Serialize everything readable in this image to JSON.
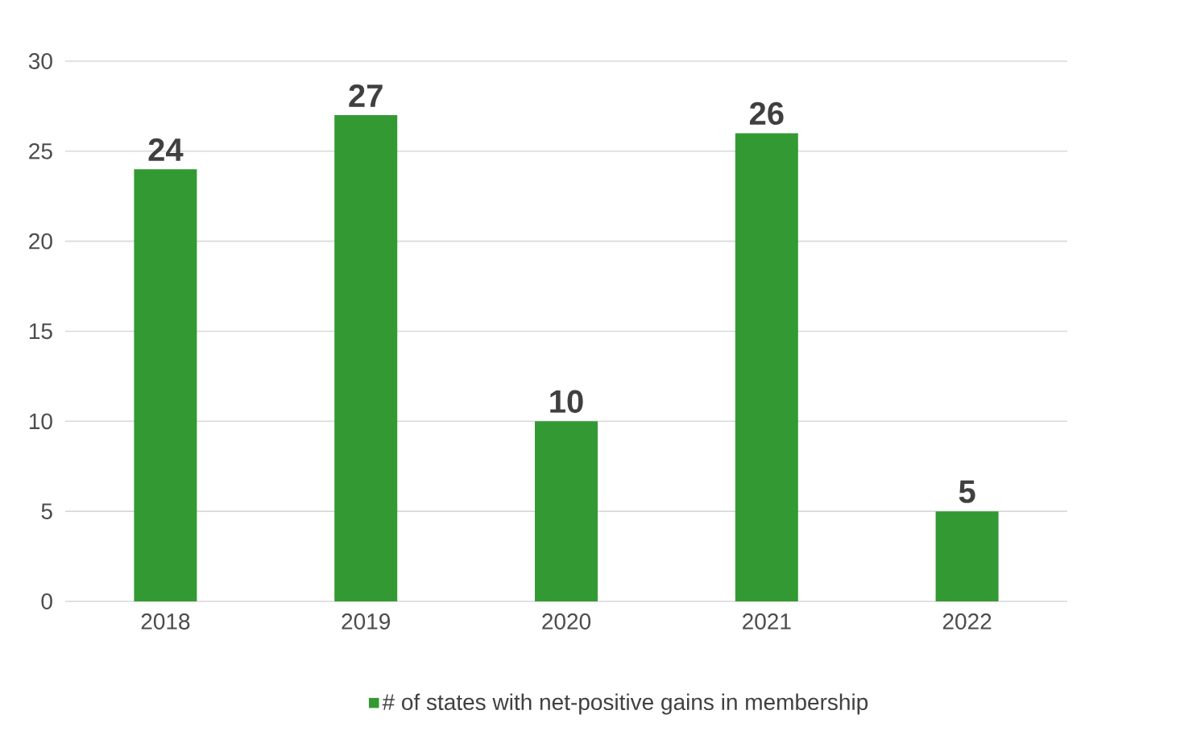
{
  "chart_data": {
    "type": "bar",
    "categories": [
      "2018",
      "2019",
      "2020",
      "2021",
      "2022"
    ],
    "series": [
      {
        "name": "# of states with net-positive gains in membership",
        "color": "#339933",
        "values": [
          24,
          27,
          10,
          26,
          5
        ]
      }
    ],
    "ylim": [
      0,
      30
    ],
    "yticks": [
      0,
      5,
      10,
      15,
      20,
      25,
      30
    ],
    "grid": "y",
    "legend": "bottom",
    "data_labels": true
  }
}
